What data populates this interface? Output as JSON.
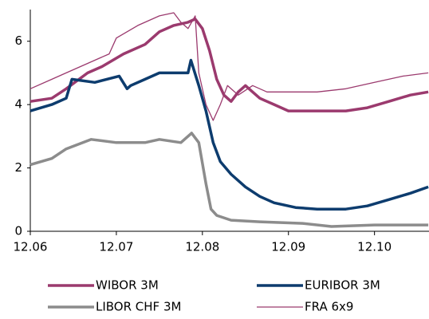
{
  "chart_data": {
    "type": "line",
    "xlim": [
      0,
      55.6
    ],
    "ylim": [
      0,
      7
    ],
    "xticks": [
      {
        "value": 0,
        "label": "12.06"
      },
      {
        "value": 12,
        "label": "12.07"
      },
      {
        "value": 24,
        "label": "12.08"
      },
      {
        "value": 36,
        "label": "12.09"
      },
      {
        "value": 48,
        "label": "12.10"
      }
    ],
    "yticks": [
      0,
      2,
      4,
      6
    ],
    "grid": false,
    "legend": "bottom",
    "series": [
      {
        "name": "WIBOR 3M",
        "color": "#9b3a6e",
        "width": "thick",
        "x": [
          0,
          3,
          5,
          8,
          10,
          13,
          16,
          18,
          20,
          22,
          23,
          24,
          25,
          26,
          27,
          28,
          29,
          30,
          31,
          32,
          33,
          34,
          36,
          40,
          44,
          47,
          50,
          53,
          55.5
        ],
        "values": [
          4.1,
          4.2,
          4.5,
          5.0,
          5.2,
          5.6,
          5.9,
          6.3,
          6.5,
          6.6,
          6.7,
          6.4,
          5.7,
          4.8,
          4.3,
          4.1,
          4.4,
          4.6,
          4.4,
          4.2,
          4.1,
          4.0,
          3.8,
          3.8,
          3.8,
          3.9,
          4.1,
          4.3,
          4.4
        ]
      },
      {
        "name": "EURIBOR 3M",
        "color": "#0d3c6e",
        "width": "thick",
        "x": [
          0,
          3,
          5,
          5.8,
          9,
          12.4,
          13.5,
          14,
          16,
          18,
          22,
          22.4,
          23.5,
          24.5,
          25.5,
          26.5,
          28,
          30,
          32,
          34,
          37,
          40,
          44,
          47,
          50,
          53,
          55.5
        ],
        "values": [
          3.8,
          4.0,
          4.2,
          4.8,
          4.7,
          4.9,
          4.5,
          4.6,
          4.8,
          5.0,
          5.0,
          5.4,
          4.6,
          3.8,
          2.8,
          2.2,
          1.8,
          1.4,
          1.1,
          0.9,
          0.75,
          0.7,
          0.7,
          0.8,
          1.0,
          1.2,
          1.4
        ]
      },
      {
        "name": "LIBOR CHF 3M",
        "color": "#8c8c8c",
        "width": "thick",
        "x": [
          0,
          3,
          5,
          8.5,
          12,
          16,
          18,
          21,
          22.5,
          23.5,
          24.5,
          25.2,
          26,
          28,
          32,
          38,
          42,
          48,
          55.5
        ],
        "values": [
          2.1,
          2.3,
          2.6,
          2.9,
          2.8,
          2.8,
          2.9,
          2.8,
          3.1,
          2.8,
          1.5,
          0.7,
          0.5,
          0.35,
          0.3,
          0.25,
          0.15,
          0.2,
          0.2
        ]
      },
      {
        "name": "FRA 6x9",
        "color": "#9b3a6e",
        "width": "thin",
        "x": [
          0,
          3,
          5,
          8,
          11,
          12,
          15,
          18,
          20,
          21,
          22,
          23,
          23.5,
          24.5,
          25.5,
          26.5,
          27.5,
          29,
          31,
          33,
          36,
          40,
          44,
          48,
          52,
          55.5
        ],
        "values": [
          4.5,
          4.8,
          5.0,
          5.3,
          5.6,
          6.1,
          6.5,
          6.8,
          6.9,
          6.6,
          6.4,
          6.8,
          5.0,
          4.0,
          3.5,
          4.0,
          4.6,
          4.3,
          4.6,
          4.4,
          4.4,
          4.4,
          4.5,
          4.7,
          4.9,
          5.0
        ]
      }
    ]
  }
}
